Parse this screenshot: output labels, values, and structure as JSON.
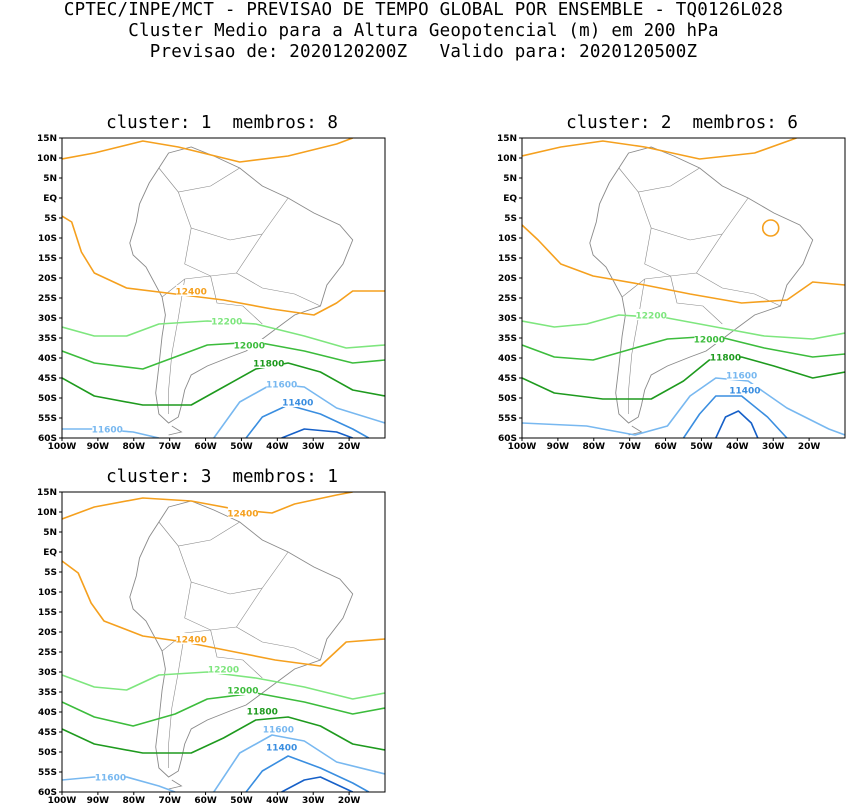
{
  "header": {
    "line1": "CPTEC/INPE/MCT - PREVISAO DE TEMPO GLOBAL POR ENSEMBLE - TQ0126L028",
    "line2": "Cluster Medio para a Altura Geopotencial (m) em 200 hPa",
    "line3": "Previsao de: 2020120200Z   Valido para: 2020120500Z"
  },
  "axes": {
    "lat_labels": [
      "15N",
      "10N",
      "5N",
      "EQ",
      "5S",
      "10S",
      "15S",
      "20S",
      "25S",
      "30S",
      "35S",
      "40S",
      "45S",
      "50S",
      "55S",
      "60S"
    ],
    "lon_labels": [
      "100W",
      "90W",
      "80W",
      "70W",
      "60W",
      "50W",
      "40W",
      "30W",
      "20W"
    ]
  },
  "colors": {
    "c12400": "#f5a01e",
    "c12200": "#7ee67e",
    "c12000": "#3cbc3c",
    "c11800": "#1e9a1e",
    "c11600": "#78b8f0",
    "c11400": "#3a8ee0",
    "c11200": "#1660c8",
    "coast": "#8a8a8a"
  },
  "panels": [
    {
      "title": "cluster: 1  membros: 8",
      "contour_labels": [
        "12400",
        "12200",
        "12000",
        "11800",
        "11600",
        "11400",
        "11600"
      ]
    },
    {
      "title": "cluster: 2  membros: 6",
      "contour_labels": [
        "12200",
        "12000",
        "11800",
        "11600",
        "11400"
      ]
    },
    {
      "title": "cluster: 3  membros: 1",
      "contour_labels": [
        "12400",
        "12400",
        "12200",
        "12000",
        "11800",
        "11600",
        "11400",
        "11600"
      ]
    }
  ]
}
